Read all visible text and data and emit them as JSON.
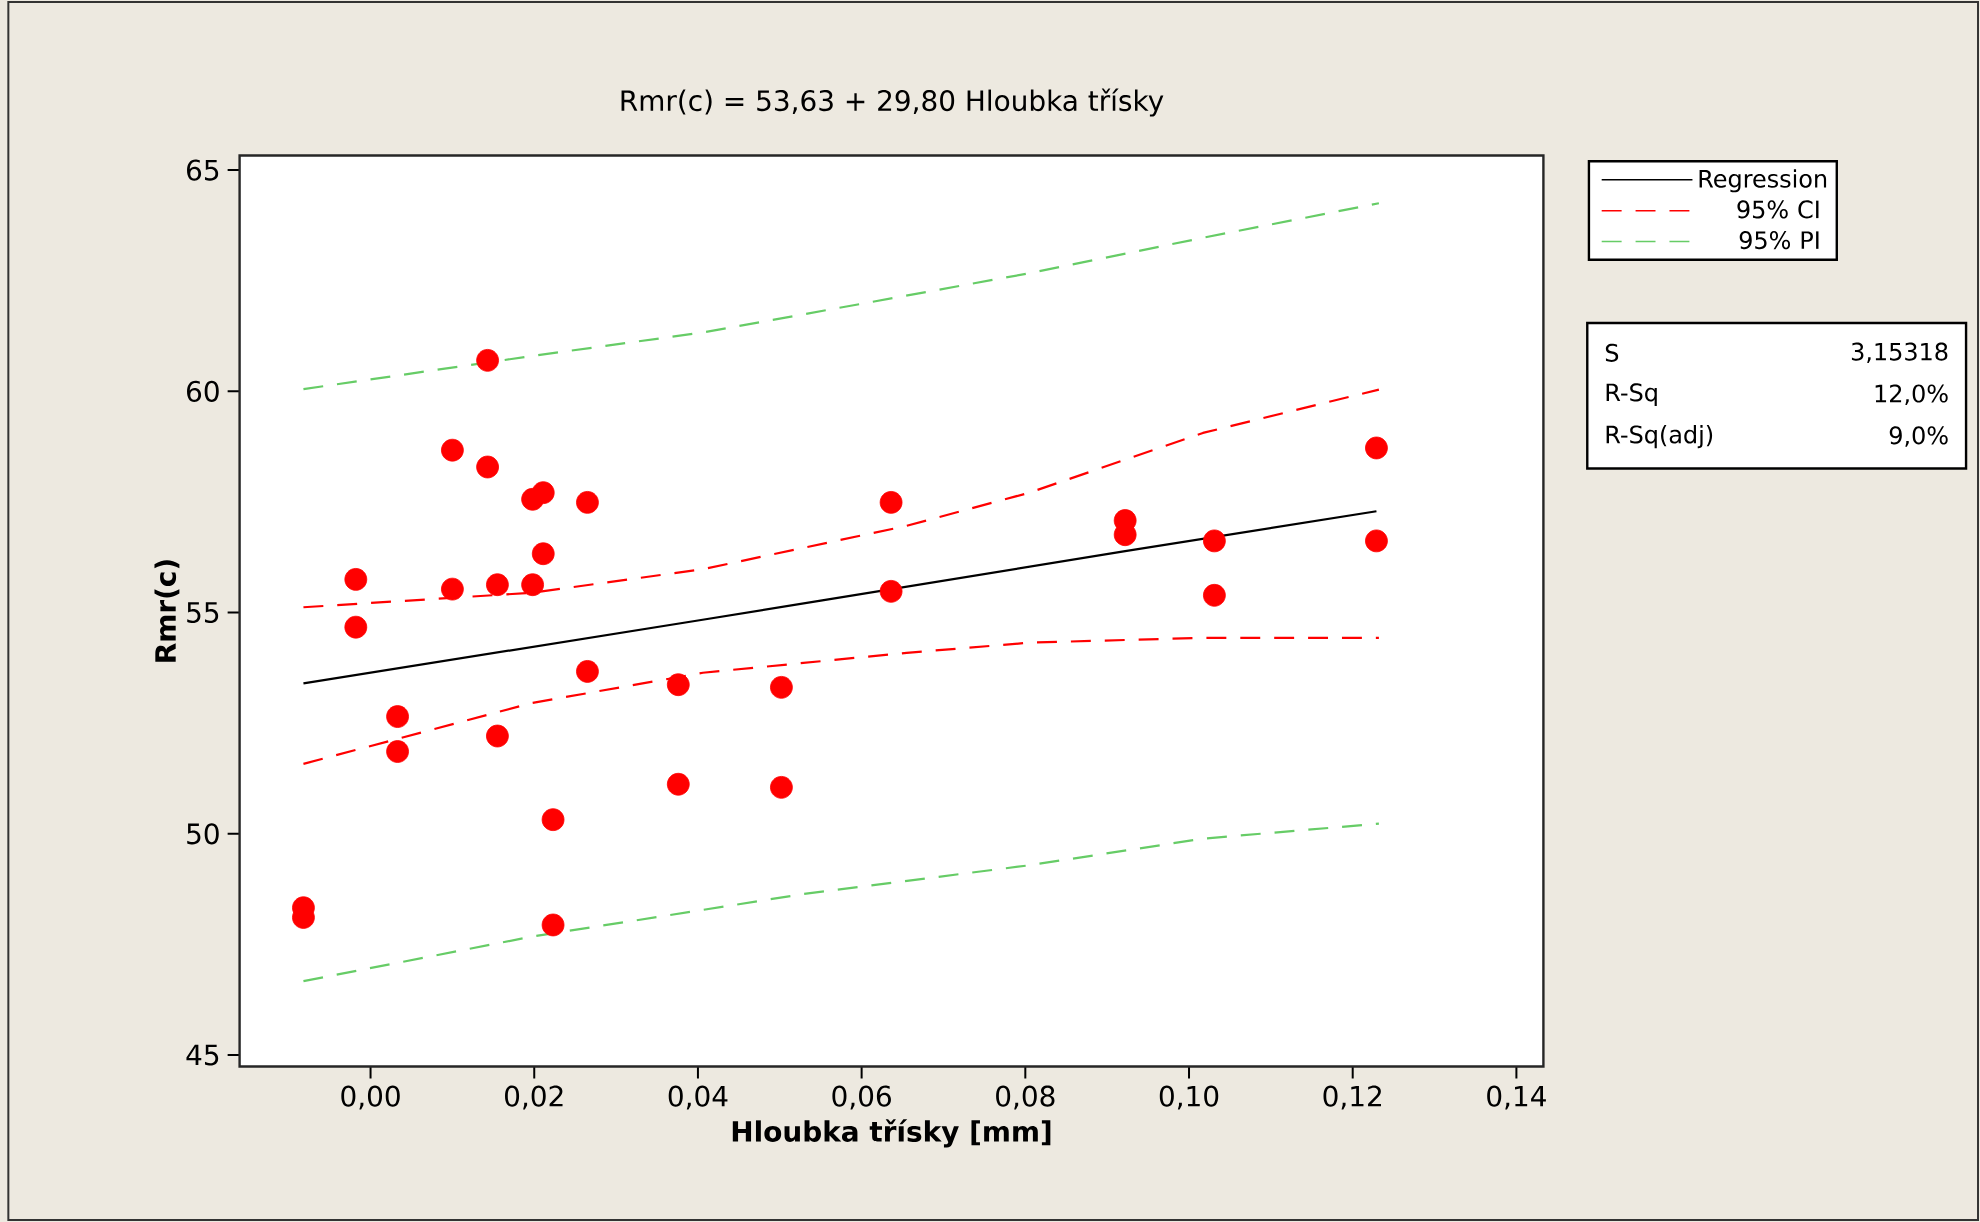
{
  "chart_data": {
    "type": "scatter",
    "title": "Rmr(c) =  53,63 + 29,80 Hloubka třísky",
    "xlabel": "Hloubka třísky [mm]",
    "ylabel": "Rmr(c)",
    "xlim": [
      -0.016,
      0.1433
    ],
    "ylim": [
      44.74,
      65.33
    ],
    "xticks": [
      {
        "value": 0,
        "label": "0,00"
      },
      {
        "value": 0.02,
        "label": "0,02"
      },
      {
        "value": 0.04,
        "label": "0,04"
      },
      {
        "value": 0.06,
        "label": "0,06"
      },
      {
        "value": 0.08,
        "label": "0,08"
      },
      {
        "value": 0.1,
        "label": "0,10"
      },
      {
        "value": 0.12,
        "label": "0,12"
      },
      {
        "value": 0.14,
        "label": "0,14"
      }
    ],
    "yticks": [
      45,
      50,
      55,
      60,
      65
    ],
    "grid": false,
    "legend": "right",
    "marker": "circle",
    "series": [
      {
        "color": "#ff0000",
        "x": [
          -0.0082,
          -0.0082,
          -0.0018,
          -0.0018,
          0.0033,
          0.0033,
          0.01,
          0.01,
          0.0143,
          0.0143,
          0.0155,
          0.0155,
          0.0198,
          0.0211,
          0.0198,
          0.0211,
          0.0223,
          0.0223,
          0.0265,
          0.0265,
          0.0376,
          0.0376,
          0.0502,
          0.0502,
          0.0636,
          0.0636,
          0.0922,
          0.0922,
          0.1031,
          0.1031,
          0.1229,
          0.1229
        ],
        "values": [
          48.33,
          48.11,
          55.75,
          54.67,
          52.65,
          51.86,
          58.67,
          55.53,
          60.7,
          58.29,
          55.63,
          52.21,
          57.56,
          57.71,
          55.63,
          56.33,
          50.32,
          47.94,
          57.49,
          53.67,
          53.37,
          51.12,
          53.31,
          51.05,
          57.49,
          55.48,
          57.08,
          56.76,
          56.62,
          55.39,
          58.72,
          56.62
        ]
      },
      {
        "type": "line",
        "name": "Regression",
        "color": "#000000",
        "marker": "none",
        "line_style": "solid",
        "x": [
          -0.0082,
          0.04,
          0.055,
          0.0922,
          0.1229
        ],
        "values": [
          53.4,
          54.82,
          55.27,
          56.39,
          57.29
        ]
      },
      {
        "type": "line",
        "name": "95% CI",
        "color": "#ff0000",
        "marker": "none",
        "line_style": "dashed",
        "x": [
          -0.0082,
          0.0198,
          0.0406,
          0.0655,
          0.0805,
          0.1017,
          0.1232
        ],
        "values": [
          55.12,
          55.45,
          55.98,
          56.96,
          57.71,
          59.06,
          60.04
        ]
      },
      {
        "type": "line",
        "color": "#ff0000",
        "marker": "none",
        "line_style": "dashed",
        "x": [
          -0.0082,
          0.0198,
          0.0406,
          0.0655,
          0.0805,
          0.1017,
          0.1232
        ],
        "values": [
          51.58,
          52.96,
          53.64,
          54.09,
          54.32,
          54.43,
          54.43
        ]
      },
      {
        "type": "line",
        "name": "95% PI",
        "color": "#66cc66",
        "marker": "none",
        "line_style": "dashed",
        "x": [
          -0.0082,
          0.0198,
          0.0406,
          0.0529,
          0.0805,
          0.1017,
          0.1232
        ],
        "values": [
          60.05,
          60.8,
          61.33,
          61.74,
          62.67,
          63.47,
          64.25
        ]
      },
      {
        "type": "line",
        "color": "#66cc66",
        "marker": "none",
        "line_style": "dashed",
        "x": [
          -0.0082,
          0.0198,
          0.0406,
          0.0529,
          0.0805,
          0.1017,
          0.1232
        ],
        "values": [
          46.67,
          47.68,
          48.28,
          48.64,
          49.29,
          49.89,
          50.23
        ]
      }
    ],
    "annotations": [
      "S",
      "3,15318",
      "R-Sq",
      "12,0%",
      "R-Sq(adj)",
      "9,0%"
    ]
  }
}
